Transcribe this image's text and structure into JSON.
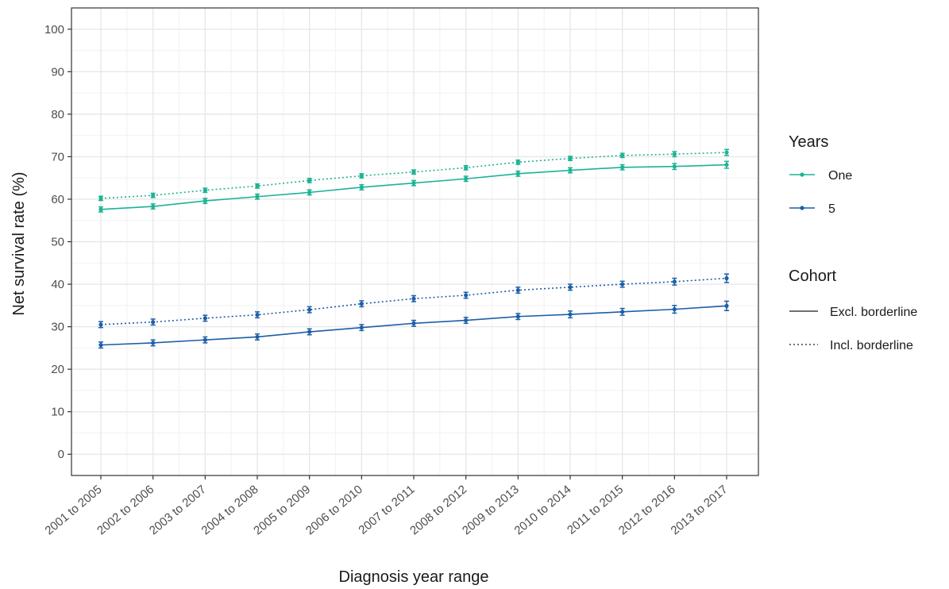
{
  "chart_data": {
    "type": "line",
    "xlabel": "Diagnosis year range",
    "ylabel": "Net survival rate (%)",
    "ylim": [
      -5,
      105
    ],
    "yticks": [
      0,
      10,
      20,
      30,
      40,
      50,
      60,
      70,
      80,
      90,
      100
    ],
    "grid": true,
    "legend_placement": "right",
    "categories": [
      "2001 to 2005",
      "2002 to 2006",
      "2003 to 2007",
      "2004 to 2008",
      "2005 to 2009",
      "2006 to 2010",
      "2007 to 2011",
      "2008 to 2012",
      "2009 to 2013",
      "2010 to 2014",
      "2011 to 2015",
      "2012 to 2016",
      "2013 to 2017"
    ],
    "series": [
      {
        "years": "One",
        "cohort": "Excl. borderline",
        "color": "#1bb394",
        "dash": "solid",
        "values": [
          57.6,
          58.3,
          59.6,
          60.6,
          61.6,
          62.8,
          63.8,
          64.8,
          66.0,
          66.8,
          67.5,
          67.7,
          68.1
        ],
        "err": [
          0.6,
          0.6,
          0.6,
          0.6,
          0.6,
          0.6,
          0.6,
          0.6,
          0.6,
          0.6,
          0.6,
          0.7,
          0.8
        ]
      },
      {
        "years": "One",
        "cohort": "Incl. borderline",
        "color": "#1bb394",
        "dash": "dotted",
        "values": [
          60.2,
          60.9,
          62.1,
          63.1,
          64.4,
          65.5,
          66.4,
          67.4,
          68.7,
          69.6,
          70.3,
          70.6,
          71.0
        ],
        "err": [
          0.5,
          0.5,
          0.5,
          0.5,
          0.5,
          0.5,
          0.5,
          0.5,
          0.5,
          0.5,
          0.5,
          0.6,
          0.7
        ]
      },
      {
        "years": "5",
        "cohort": "Excl. borderline",
        "color": "#1c5ea8",
        "dash": "solid",
        "values": [
          25.7,
          26.2,
          26.9,
          27.6,
          28.8,
          29.8,
          30.8,
          31.5,
          32.4,
          32.9,
          33.5,
          34.1,
          34.9
        ],
        "err": [
          0.7,
          0.7,
          0.7,
          0.7,
          0.7,
          0.7,
          0.7,
          0.7,
          0.7,
          0.8,
          0.8,
          0.9,
          1.1
        ]
      },
      {
        "years": "5",
        "cohort": "Incl. borderline",
        "color": "#1c5ea8",
        "dash": "dotted",
        "values": [
          30.5,
          31.1,
          32.0,
          32.8,
          34.0,
          35.4,
          36.6,
          37.4,
          38.6,
          39.3,
          40.0,
          40.6,
          41.4
        ],
        "err": [
          0.7,
          0.7,
          0.7,
          0.7,
          0.7,
          0.7,
          0.7,
          0.7,
          0.7,
          0.7,
          0.7,
          0.8,
          1.0
        ]
      }
    ],
    "legend": {
      "years_title": "Years",
      "years_items": [
        {
          "label": "One",
          "color": "#1bb394"
        },
        {
          "label": "5",
          "color": "#1c5ea8"
        }
      ],
      "cohort_title": "Cohort",
      "cohort_items": [
        {
          "label": "Excl. borderline",
          "dash": "solid"
        },
        {
          "label": "Incl. borderline",
          "dash": "dotted"
        }
      ]
    }
  }
}
